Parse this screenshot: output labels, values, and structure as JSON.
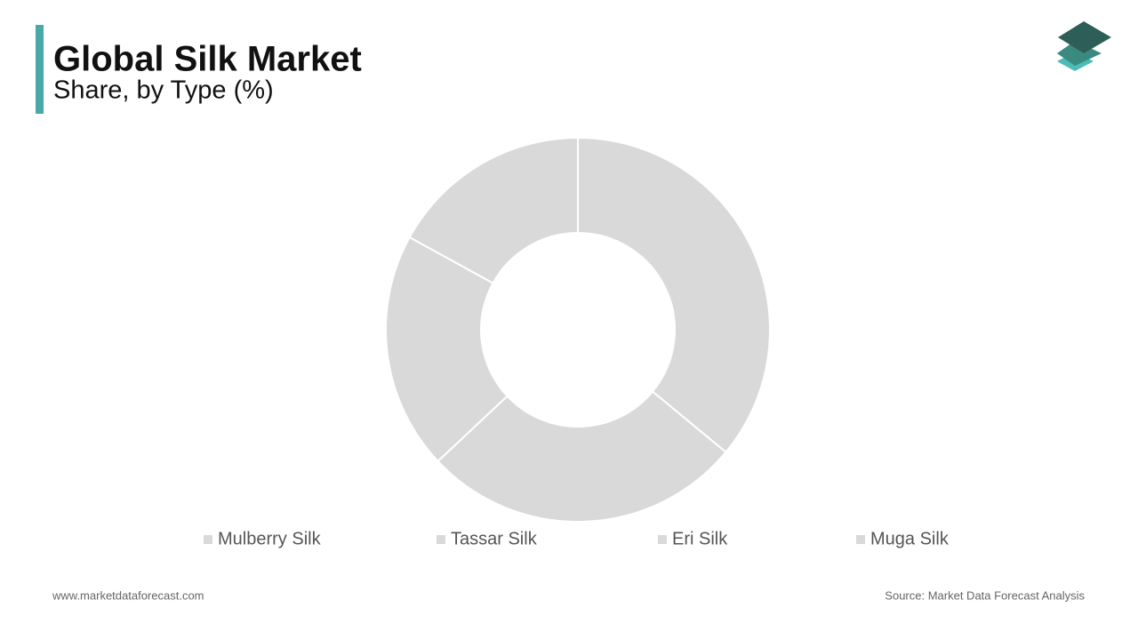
{
  "header": {
    "title": "Global Silk Market",
    "subtitle": "Share, by Type (%)"
  },
  "chart_data": {
    "type": "donut",
    "categories": [
      "Mulberry Silk",
      "Tassar Silk",
      "Eri Silk",
      "Muga Silk"
    ],
    "values": [
      36,
      27,
      20,
      17
    ],
    "colors": [
      "#d9d9d9",
      "#d9d9d9",
      "#d9d9d9",
      "#d9d9d9"
    ]
  },
  "footer": {
    "website": "www.marketdataforecast.com",
    "source": "Source: Market Data Forecast Analysis"
  }
}
